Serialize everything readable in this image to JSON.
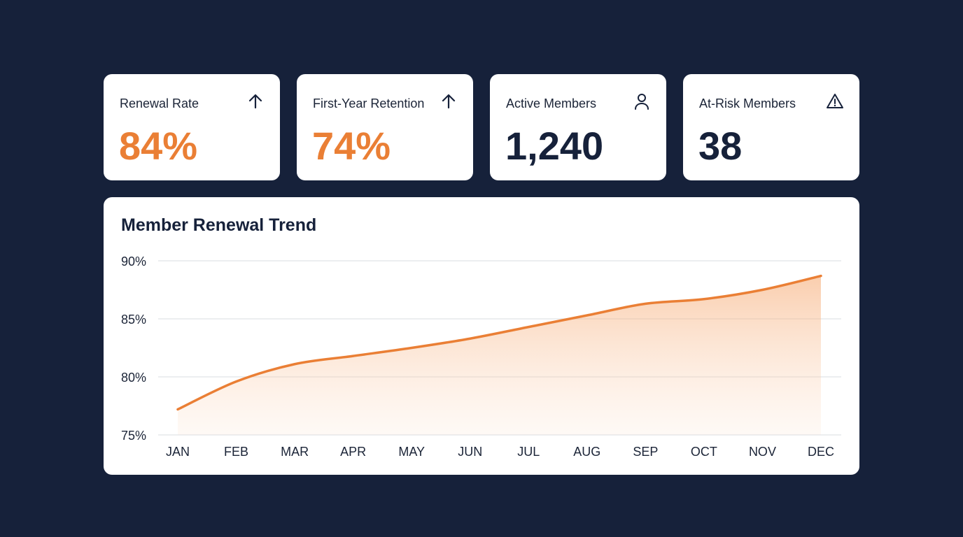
{
  "kpis": [
    {
      "label": "Renewal Rate",
      "value": "84%",
      "icon": "arrow-up-icon",
      "value_color": "#ea7f35"
    },
    {
      "label": "First-Year Retention",
      "value": "74%",
      "icon": "arrow-up-icon",
      "value_color": "#ea7f35"
    },
    {
      "label": "Active Members",
      "value": "1,240",
      "icon": "user-icon",
      "value_color": "#16213a"
    },
    {
      "label": "At-Risk Members",
      "value": "38",
      "icon": "warning-icon",
      "value_color": "#16213a"
    }
  ],
  "chart_data": {
    "type": "area",
    "title": "Member Renewal Trend",
    "categories": [
      "JAN",
      "FEB",
      "MAR",
      "APR",
      "MAY",
      "JUN",
      "JUL",
      "AUG",
      "SEP",
      "OCT",
      "NOV",
      "DEC"
    ],
    "values": [
      77.2,
      79.6,
      81.1,
      81.8,
      82.5,
      83.3,
      84.3,
      85.3,
      86.3,
      86.7,
      87.5,
      88.7
    ],
    "yticks": [
      "75%",
      "80%",
      "85%",
      "90%"
    ],
    "ytick_values": [
      75,
      80,
      85,
      90
    ],
    "ylim": [
      75,
      90
    ],
    "grid": true,
    "legend": "none",
    "color": "#ea7f35"
  }
}
